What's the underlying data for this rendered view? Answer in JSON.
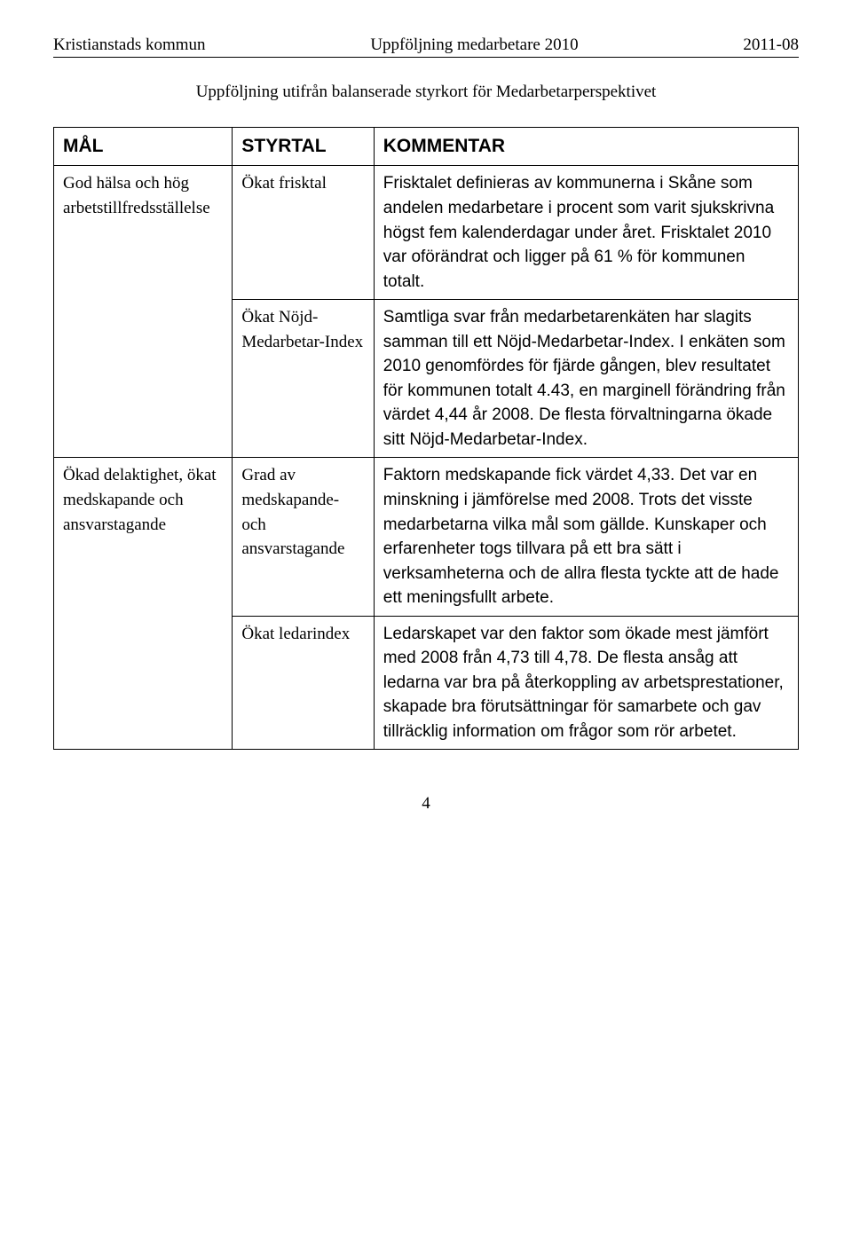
{
  "header": {
    "left": "Kristianstads kommun",
    "center": "Uppföljning medarbetare 2010",
    "right": "2011-08"
  },
  "title": "Uppföljning utifrån balanserade styrkort för Medarbetarperspektivet",
  "columns": {
    "mal": "MÅL",
    "styrtal": "STYRTAL",
    "kommentar": "KOMMENTAR"
  },
  "goals": [
    {
      "label": "God hälsa och hög arbetstillfredsställelse",
      "rows": [
        {
          "styrtal": "Ökat frisktal",
          "comment": "Frisktalet definieras av kommunerna i Skåne som andelen medarbetare i procent som varit sjukskrivna högst fem kalenderdagar under året. Frisktalet 2010 var oförändrat och ligger på 61 % för kommunen totalt."
        },
        {
          "styrtal": "Ökat Nöjd-Medarbetar-Index",
          "comment": "Samtliga svar från medarbetarenkäten har slagits samman till ett Nöjd-Medarbetar-Index. I enkäten som 2010 genomfördes för fjärde gången, blev resultatet för kommunen totalt 4.43, en marginell förändring från värdet 4,44 år 2008. De flesta förvaltningarna ökade sitt Nöjd-Medarbetar-Index."
        }
      ]
    },
    {
      "label": "Ökad delaktighet, ökat medskapande och ansvarstagande",
      "rows": [
        {
          "styrtal": "Grad av medskapande- och ansvarstagande",
          "comment": "Faktorn medskapande fick värdet 4,33. Det var en minskning i jämförelse med 2008. Trots det visste medarbetarna vilka mål som gällde. Kunskaper och erfarenheter togs tillvara på ett bra sätt i verksamheterna och de allra flesta tyckte att de hade ett meningsfullt arbete."
        },
        {
          "styrtal": "Ökat ledarindex",
          "comment": "Ledarskapet var den faktor som ökade mest jämfört med 2008 från 4,73 till 4,78. De flesta ansåg att ledarna var bra på återkoppling av arbetsprestationer, skapade bra förutsättningar för samarbete och gav tillräcklig information om frågor som rör arbetet."
        }
      ]
    }
  ],
  "pageNumber": "4",
  "colWidths": {
    "mal": "24%",
    "styrtal": "19%",
    "kommentar": "57%"
  }
}
